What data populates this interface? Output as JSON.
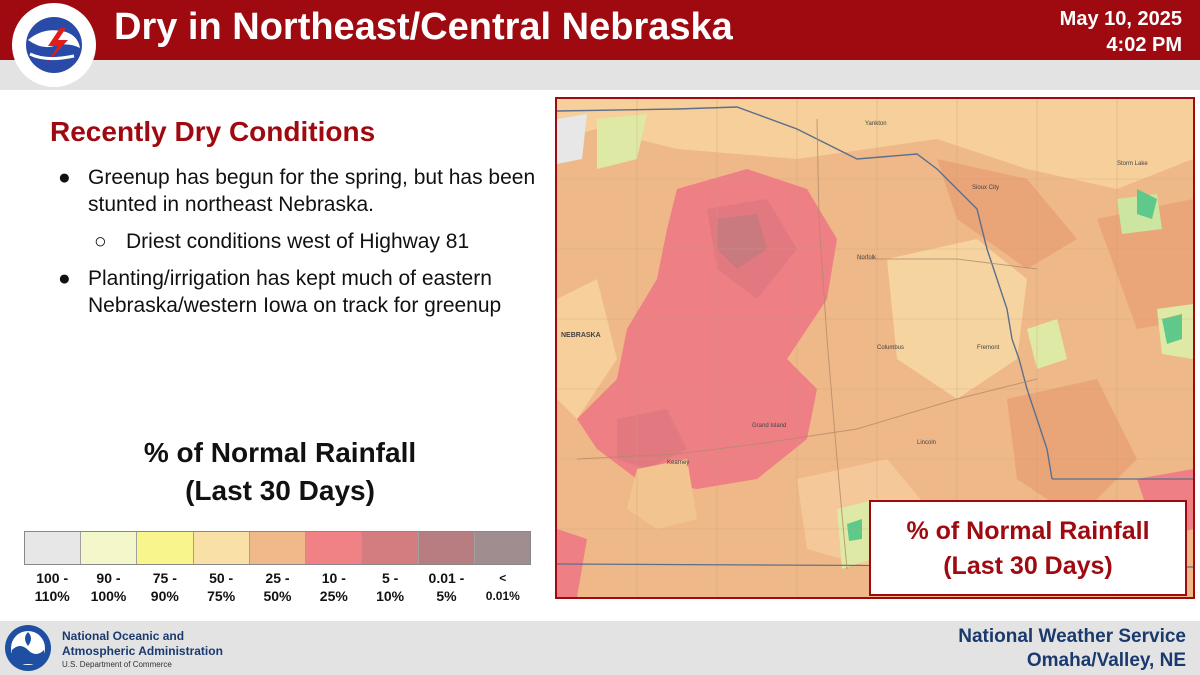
{
  "header": {
    "title": "Dry in Northeast/Central Nebraska",
    "date": "May 10, 2025",
    "time": "4:02 PM",
    "logo_text": "NATIONAL WEATHER SERVICE"
  },
  "content": {
    "section_title": "Recently Dry Conditions",
    "bullets": [
      "Greenup has begun for the spring, but has been stunted in northeast Nebraska.",
      "Driest conditions west of Highway 81",
      "Planting/irrigation has kept much of eastern Nebraska/western Iowa on track for greenup"
    ],
    "bullet_symbol": "●",
    "sub_bullet_symbol": "○"
  },
  "legend": {
    "title_line1": "% of Normal Rainfall",
    "title_line2": "(Last 30 Days)",
    "bins": [
      {
        "line1": "100 -",
        "line2": "110%",
        "color": "#e7e7e7"
      },
      {
        "line1": "90 -",
        "line2": "100%",
        "color": "#f4f7c9"
      },
      {
        "line1": "75 -",
        "line2": "90%",
        "color": "#f7f58c"
      },
      {
        "line1": "50 -",
        "line2": "75%",
        "color": "#f9e0a6"
      },
      {
        "line1": "25 -",
        "line2": "50%",
        "color": "#f0b98a"
      },
      {
        "line1": "10 -",
        "line2": "25%",
        "color": "#f08286"
      },
      {
        "line1": "5 -",
        "line2": "10%",
        "color": "#d47d80"
      },
      {
        "line1": "0.01 -",
        "line2": "5%",
        "color": "#b77d80"
      },
      {
        "line1": "<",
        "line2": "0.01%",
        "color": "#a08d90"
      }
    ]
  },
  "map": {
    "callout_line1": "% of Normal Rainfall",
    "callout_line2": "(Last 30 Days)",
    "labels": {
      "state": "NEBRASKA",
      "norfolk": "Norfolk",
      "sioux_city": "Sioux City",
      "columbus": "Columbus",
      "grand_island": "Grand Island",
      "kearney": "Kearney",
      "lincoln": "Lincoln",
      "yankton": "Yankton",
      "storm_lake": "Storm Lake",
      "fremont": "Fremont"
    }
  },
  "footer": {
    "noaa_line1": "National Oceanic and",
    "noaa_line2": "Atmospheric Administration",
    "noaa_line3": "U.S. Department of Commerce",
    "noaa_logo_text": "NOAA",
    "right_line1": "National Weather Service",
    "right_line2": "Omaha/Valley, NE"
  },
  "colors": {
    "brand_red": "#9e0a0f",
    "navy": "#1a3a6e"
  }
}
